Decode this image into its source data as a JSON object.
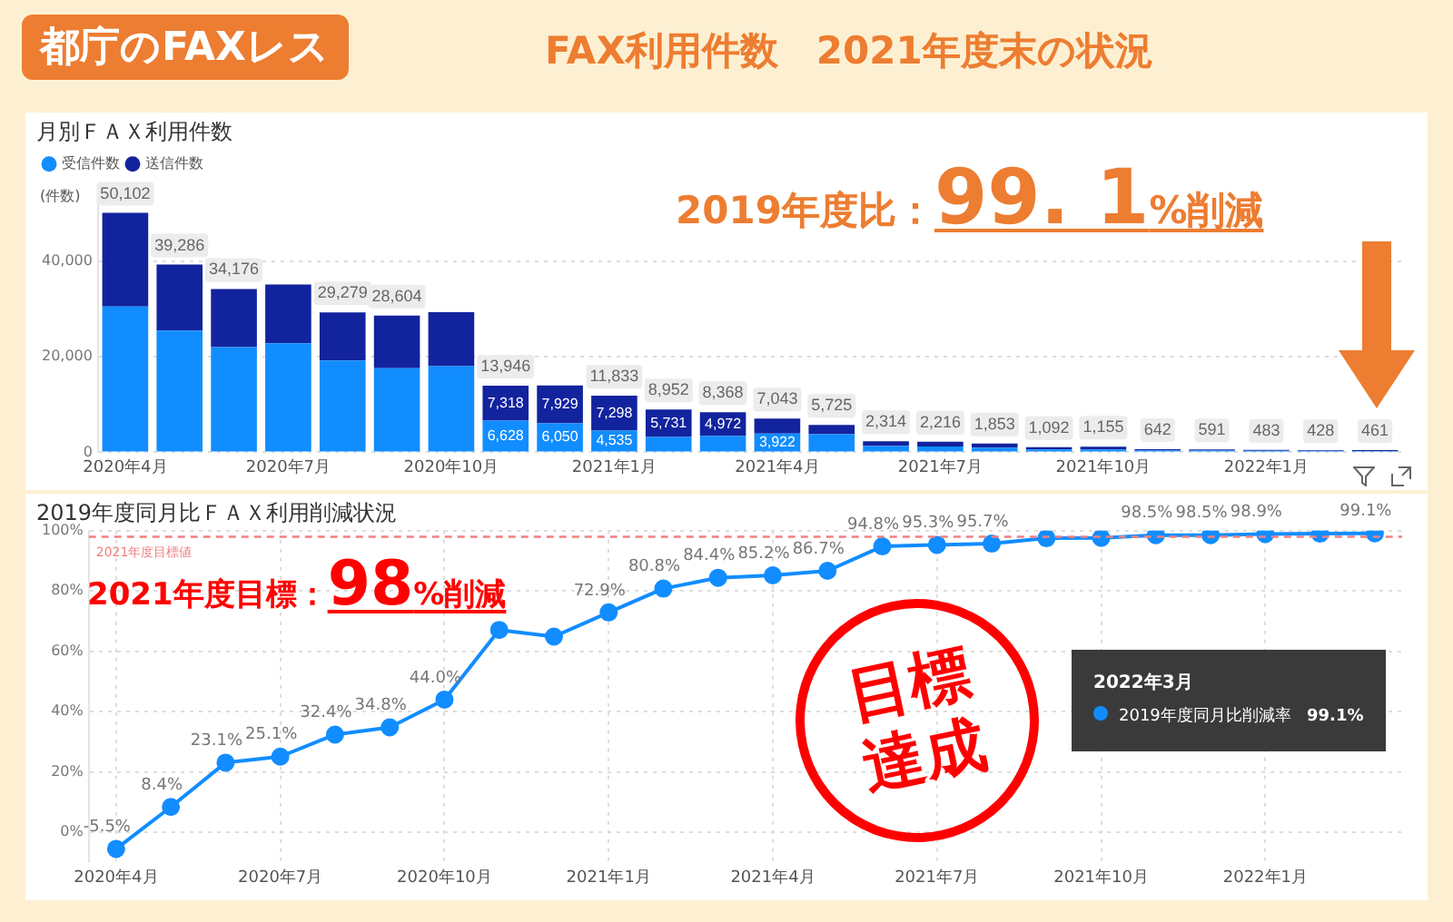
{
  "chart_data": [
    {
      "type": "bar",
      "title": "月別ＦＡＸ利用件数",
      "ylabel": "(件数)",
      "stacked": true,
      "legend": "top left",
      "grid": "y",
      "categories": [
        "2020年4月",
        null,
        null,
        "2020年7月",
        null,
        null,
        "2020年10月",
        null,
        null,
        "2021年1月",
        null,
        null,
        "2021年4月",
        null,
        null,
        "2021年7月",
        null,
        null,
        "2021年10月",
        null,
        null,
        "2022年1月",
        null,
        null
      ],
      "series": [
        {
          "name": "受信件数",
          "color": "#118dff",
          "values": [
            30500,
            25500,
            22000,
            22800,
            19200,
            17600,
            18000,
            6628,
            6050,
            4535,
            3221,
            3396,
            3922,
            3800,
            1300,
            1200,
            1000,
            600,
            600,
            400,
            350,
            300,
            250,
            250
          ],
          "value_labels": [
            null,
            null,
            null,
            null,
            null,
            null,
            null,
            "6,628",
            "6,050",
            "4,535",
            null,
            null,
            "3,922",
            null,
            null,
            null,
            null,
            null,
            null,
            null,
            null,
            null,
            null,
            null
          ]
        },
        {
          "name": "送信件数",
          "color": "#12239e",
          "values": [
            19602,
            13786,
            12176,
            12300,
            10079,
            11004,
            11300,
            7318,
            7929,
            7298,
            5731,
            4972,
            3121,
            1925,
            1014,
            1016,
            853,
            492,
            555,
            242,
            241,
            183,
            178,
            211
          ],
          "value_labels": [
            null,
            null,
            null,
            null,
            null,
            null,
            null,
            "7,318",
            "7,929",
            "7,298",
            "5,731",
            "4,972",
            null,
            null,
            null,
            null,
            null,
            null,
            null,
            null,
            null,
            null,
            null,
            null
          ]
        }
      ],
      "totals": [
        "50,102",
        "39,286",
        "34,176",
        null,
        "29,279",
        "28,604",
        null,
        "13,946",
        null,
        "11,833",
        "8,952",
        "8,368",
        "7,043",
        "5,725",
        "2,314",
        "2,216",
        "1,853",
        "1,092",
        "1,155",
        "642",
        "591",
        "483",
        "428",
        "461"
      ],
      "ylim": [
        0,
        55000
      ],
      "yticks": [
        0,
        {
          "value": 20000,
          "label": "20,000"
        },
        {
          "value": 40000,
          "label": "40,000"
        }
      ],
      "annotations": [
        "都庁のFAXレス",
        "FAX利用件数　2021年度末の状況",
        "2019年度比：99. 1%削減"
      ]
    },
    {
      "type": "line",
      "title": "2019年度同月比ＦＡＸ利用削減状況",
      "grid": true,
      "marker": "circle",
      "line_style": "solid",
      "categories": [
        "2020年4月",
        null,
        null,
        "2020年7月",
        null,
        null,
        "2020年10月",
        null,
        null,
        "2021年1月",
        null,
        null,
        "2021年4月",
        null,
        null,
        "2021年7月",
        null,
        null,
        "2021年10月",
        null,
        null,
        "2022年1月",
        null,
        null
      ],
      "series": [
        {
          "name": "2019年度同月比削減率",
          "color": "#118dff",
          "values": [
            -5.5,
            8.4,
            23.1,
            25.1,
            32.4,
            34.8,
            44.0,
            67.1,
            64.9,
            72.9,
            80.8,
            84.4,
            85.2,
            86.7,
            94.8,
            95.3,
            95.7,
            97.5,
            97.6,
            98.5,
            98.5,
            98.9,
            99.0,
            99.1
          ],
          "value_labels": [
            "-5.5%",
            "8.4%",
            "23.1%",
            "25.1%",
            "32.4%",
            "34.8%",
            "44.0%",
            null,
            null,
            "72.9%",
            "80.8%",
            "84.4%",
            "85.2%",
            "86.7%",
            "94.8%",
            "95.3%",
            "95.7%",
            null,
            null,
            "98.5%",
            "98.5%",
            "98.9%",
            null,
            "99.1%"
          ]
        }
      ],
      "ylim": [
        -10,
        100
      ],
      "yticks": [
        {
          "value": 0,
          "label": "0%"
        },
        {
          "value": 20,
          "label": "20%"
        },
        {
          "value": 40,
          "label": "40%"
        },
        {
          "value": 60,
          "label": "60%"
        },
        {
          "value": 80,
          "label": "80%"
        },
        {
          "value": 100,
          "label": "100%"
        }
      ],
      "ref_lines": [
        {
          "axis": "y",
          "value": 98,
          "label": "2021年度目標値",
          "color": "#f08080",
          "line_style": "dashed"
        }
      ],
      "annotations": [
        "2021年度目標：98%削減",
        "目標達成",
        "2022年3月"
      ]
    }
  ]
}
